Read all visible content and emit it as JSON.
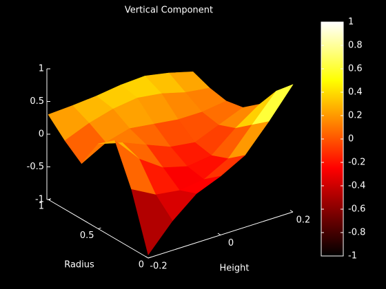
{
  "chart_data": {
    "type": "surface",
    "title": "Vertical Component",
    "xlabel": "Height",
    "ylabel": "Radius",
    "x": [
      -0.2,
      -0.133,
      -0.067,
      0,
      0.067,
      0.133,
      0.2
    ],
    "y": [
      0,
      0.167,
      0.333,
      0.5,
      0.667,
      0.833,
      1
    ],
    "z": [
      [
        -0.95,
        -0.55,
        -0.25,
        -0.1,
        0.1,
        0.5,
        0.95
      ],
      [
        -0.1,
        -0.3,
        -0.35,
        -0.3,
        -0.1,
        0.3,
        0.7
      ],
      [
        0.5,
        0.1,
        -0.15,
        -0.25,
        -0.2,
        0.1,
        0.35
      ],
      [
        0.3,
        0.2,
        0.05,
        -0.1,
        -0.15,
        0.0,
        0.15
      ],
      [
        -0.15,
        0.05,
        0.15,
        0.1,
        0.05,
        0.05,
        0.1
      ],
      [
        0.05,
        0.2,
        0.3,
        0.35,
        0.3,
        0.2,
        0.15
      ],
      [
        0.3,
        0.32,
        0.35,
        0.4,
        0.42,
        0.35,
        0.25
      ]
    ],
    "xlim": [
      -0.2,
      0.2
    ],
    "ylim": [
      0,
      1
    ],
    "zlim": [
      -1,
      1
    ],
    "xticks": [
      -0.2,
      0,
      0.2
    ],
    "yticks": [
      0,
      0.5,
      1
    ],
    "zticks": [
      -1,
      -0.5,
      0,
      0.5,
      1
    ],
    "colormap": "hot",
    "clim": [
      -1,
      1
    ],
    "colorbar_ticks": [
      -1,
      -0.8,
      -0.6,
      -0.4,
      -0.2,
      0,
      0.2,
      0.4,
      0.6,
      0.8,
      1
    ]
  }
}
